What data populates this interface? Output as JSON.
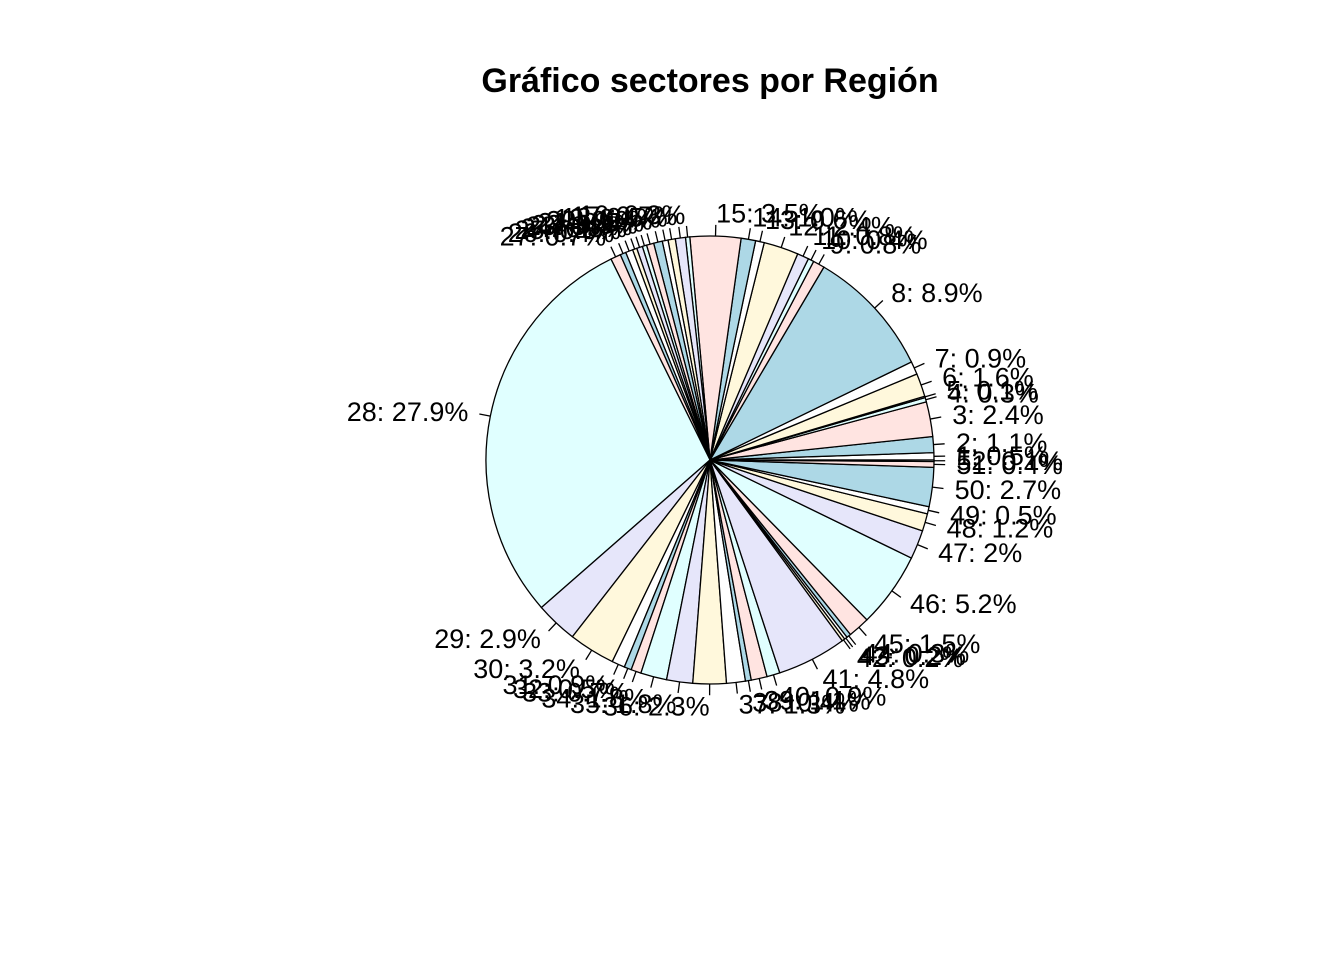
{
  "chart_data": {
    "type": "pie",
    "title": "Gráfico sectores por Región",
    "slice_colors": [
      "#ffffff",
      "#add8e6",
      "#ffe4e1",
      "#e0ffff",
      "#e6e6fa",
      "#fff8dc"
    ],
    "clockwise": false,
    "start_angle_deg": 0,
    "slices": [
      {
        "label": "1: 0.5%",
        "value": 0.5
      },
      {
        "label": "2: 1.1%",
        "value": 1.1
      },
      {
        "label": "3: 2.4%",
        "value": 2.4
      },
      {
        "label": "4: 0.3%",
        "value": 0.3
      },
      {
        "label": "5: 0.1%",
        "value": 0.1
      },
      {
        "label": "6: 1.6%",
        "value": 1.6
      },
      {
        "label": "7: 0.9%",
        "value": 0.9
      },
      {
        "label": "8: 8.9%",
        "value": 8.9
      },
      {
        "label": "9: 0.8%",
        "value": 0.8
      },
      {
        "label": "10: 0.4%",
        "value": 0.4
      },
      {
        "label": "11: 0.8%",
        "value": 0.8
      },
      {
        "label": "12: 2.4%",
        "value": 2.4
      },
      {
        "label": "13: 0.6%",
        "value": 0.6
      },
      {
        "label": "14: 1.0%",
        "value": 1.0
      },
      {
        "label": "15: 3.5%",
        "value": 3.5
      },
      {
        "label": "16: 0.3%",
        "value": 0.3
      },
      {
        "label": "17: 0.7%",
        "value": 0.7
      },
      {
        "label": "18: 0.5%",
        "value": 0.5
      },
      {
        "label": "19: 0.4%",
        "value": 0.4
      },
      {
        "label": "20: 0.6%",
        "value": 0.6
      },
      {
        "label": "21: 0.5%",
        "value": 0.5
      },
      {
        "label": "22: 0.3%",
        "value": 0.3
      },
      {
        "label": "23: 0.4%",
        "value": 0.4
      },
      {
        "label": "24: 0.3%",
        "value": 0.3
      },
      {
        "label": "25: 0.5%",
        "value": 0.5
      },
      {
        "label": "26: 0.4%",
        "value": 0.4
      },
      {
        "label": "27: 0.7%",
        "value": 0.7
      },
      {
        "label": "28: 27.9%",
        "value": 27.9
      },
      {
        "label": "29: 2.9%",
        "value": 2.9
      },
      {
        "label": "30: 3.2%",
        "value": 3.2
      },
      {
        "label": "31: 0.9%",
        "value": 0.9
      },
      {
        "label": "32: 0.5%",
        "value": 0.5
      },
      {
        "label": "33: 0.7%",
        "value": 0.7
      },
      {
        "label": "34: 1.8%",
        "value": 1.8
      },
      {
        "label": "35: 1.8%",
        "value": 1.8
      },
      {
        "label": "36: 2.3%",
        "value": 2.3
      },
      {
        "label": "37: 1.3%",
        "value": 1.3
      },
      {
        "label": "38: 0.4%",
        "value": 0.4
      },
      {
        "label": "39: 1.1%",
        "value": 1.1
      },
      {
        "label": "40: 0.9%",
        "value": 0.9
      },
      {
        "label": "41: 4.8%",
        "value": 4.8
      },
      {
        "label": "42: 0.2%",
        "value": 0.2
      },
      {
        "label": "43: 0.2%",
        "value": 0.2
      },
      {
        "label": "44: 0.3%",
        "value": 0.3
      },
      {
        "label": "45: 1.5%",
        "value": 1.5
      },
      {
        "label": "46: 5.2%",
        "value": 5.2
      },
      {
        "label": "47: 2%",
        "value": 2.0
      },
      {
        "label": "48: 1.2%",
        "value": 1.2
      },
      {
        "label": "49: 0.5%",
        "value": 0.5
      },
      {
        "label": "50: 2.7%",
        "value": 2.7
      },
      {
        "label": "51: 0.4%",
        "value": 0.4
      },
      {
        "label": "52: 0.1%",
        "value": 0.1
      }
    ]
  }
}
